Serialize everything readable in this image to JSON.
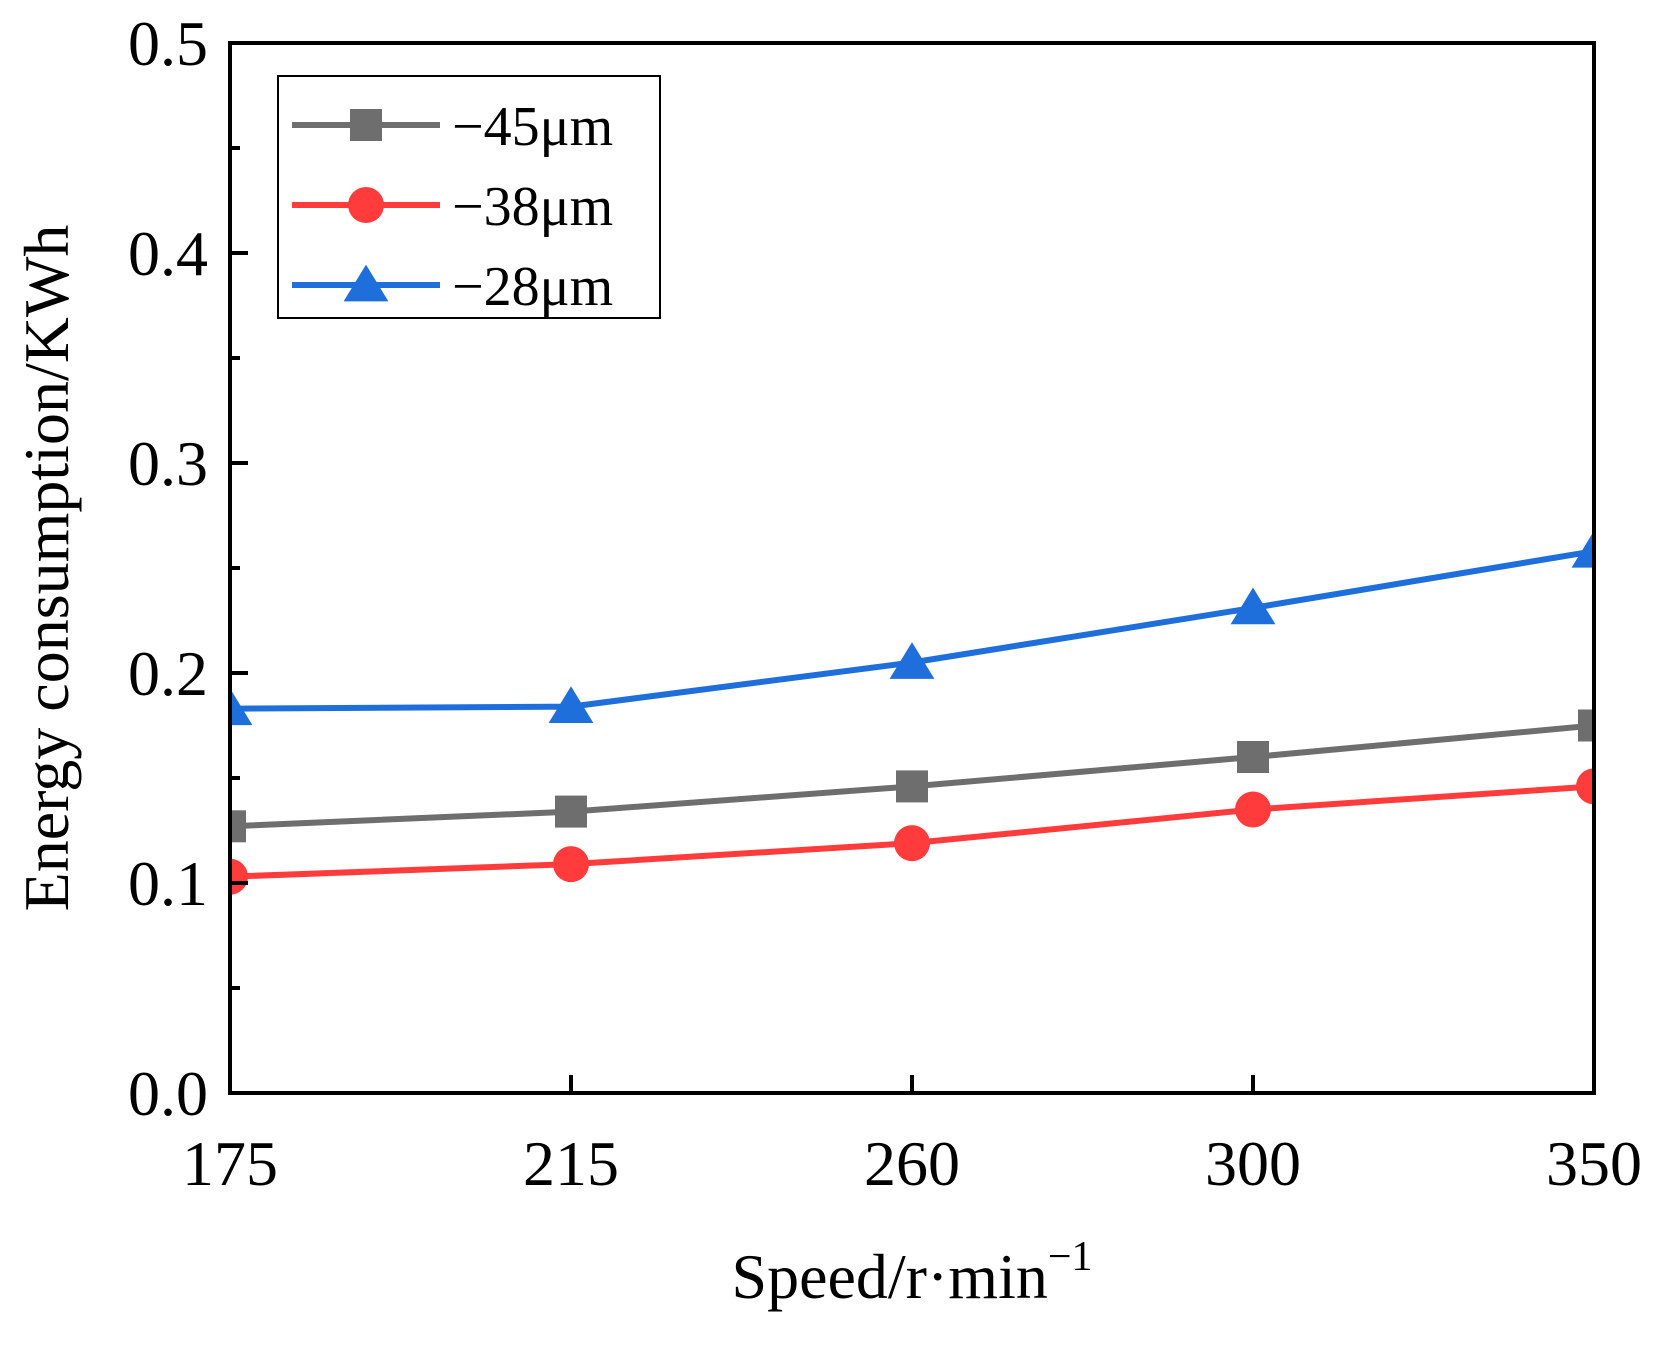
{
  "chart_data": {
    "type": "line",
    "title": "",
    "xlabel": "Speed/r·min",
    "xlabel_superscript": "−1",
    "ylabel": "Energy consumption/KWh",
    "categories": [
      "175",
      "215",
      "260",
      "300",
      "350"
    ],
    "ylim": [
      0,
      0.5
    ],
    "y_ticks": [
      {
        "value": 0.0,
        "label": "0.0"
      },
      {
        "value": 0.1,
        "label": "0.1"
      },
      {
        "value": 0.2,
        "label": "0.2"
      },
      {
        "value": 0.3,
        "label": "0.3"
      },
      {
        "value": 0.4,
        "label": "0.4"
      },
      {
        "value": 0.5,
        "label": "0.5"
      }
    ],
    "y_minor_step": 0.05,
    "grid": false,
    "legend_position": "top-left",
    "series": [
      {
        "name": "−45μm",
        "color": "#6e6e6e",
        "marker": "square",
        "values": [
          0.127,
          0.134,
          0.146,
          0.16,
          0.175
        ]
      },
      {
        "name": "−38μm",
        "color": "#ff3b3b",
        "marker": "circle",
        "values": [
          0.103,
          0.109,
          0.119,
          0.135,
          0.146
        ]
      },
      {
        "name": "−28μm",
        "color": "#1e6fdc",
        "marker": "triangle",
        "values": [
          0.183,
          0.184,
          0.205,
          0.231,
          0.258
        ]
      }
    ]
  }
}
